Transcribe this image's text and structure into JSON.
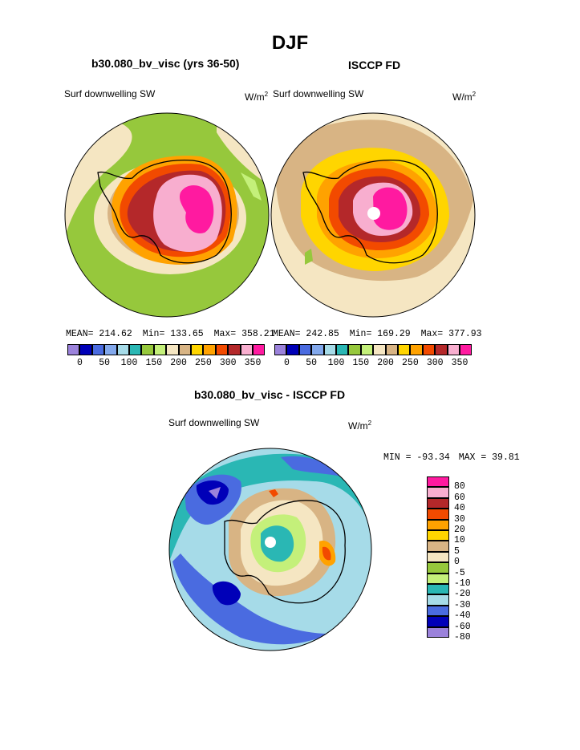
{
  "figure": {
    "title": "DJF",
    "panels": [
      {
        "title": "b30.080_bv_visc (yrs 36-50)",
        "var_label": "Surf downwelling SW",
        "units_base": "W/m",
        "units_exp": "2",
        "stats": {
          "mean_label": "MEAN=",
          "mean": "214.62",
          "min_label": "Min=",
          "min": "133.65",
          "max_label": "Max=",
          "max": "358.21"
        }
      },
      {
        "title": "ISCCP FD",
        "var_label": "Surf downwelling SW",
        "units_base": "W/m",
        "units_exp": "2",
        "stats": {
          "mean_label": "MEAN=",
          "mean": "242.85",
          "min_label": "Min=",
          "min": "169.29",
          "max_label": "Max=",
          "max": "377.93"
        }
      }
    ],
    "diff_panel": {
      "title": "b30.080_bv_visc - ISCCP FD",
      "var_label": "Surf downwelling SW",
      "units_base": "W/m",
      "units_exp": "2",
      "min_text": "MIN = -93.34",
      "max_text": "MAX =  39.81"
    }
  },
  "chart_data": [
    {
      "type": "heatmap",
      "projection": "south-polar-stereographic",
      "title": "b30.080_bv_visc (yrs 36-50)",
      "variable": "Surf downwelling SW",
      "units": "W/m2",
      "mean": 214.62,
      "min": 133.65,
      "max": 358.21,
      "colorbar_ticks": [
        "0",
        "50",
        "100",
        "150",
        "200",
        "250",
        "300",
        "350"
      ],
      "levels": [
        0,
        25,
        50,
        75,
        100,
        125,
        150,
        175,
        200,
        225,
        250,
        275,
        300,
        325,
        350
      ]
    },
    {
      "type": "heatmap",
      "projection": "south-polar-stereographic",
      "title": "ISCCP FD",
      "variable": "Surf downwelling SW",
      "units": "W/m2",
      "mean": 242.85,
      "min": 169.29,
      "max": 377.93,
      "colorbar_ticks": [
        "0",
        "50",
        "100",
        "150",
        "200",
        "250",
        "300",
        "350"
      ],
      "levels": [
        0,
        25,
        50,
        75,
        100,
        125,
        150,
        175,
        200,
        225,
        250,
        275,
        300,
        325,
        350
      ]
    },
    {
      "type": "heatmap",
      "projection": "south-polar-stereographic",
      "title": "b30.080_bv_visc - ISCCP FD",
      "variable": "Surf downwelling SW",
      "units": "W/m2",
      "min": -93.34,
      "max": 39.81,
      "colorbar_labels": [
        "80",
        "60",
        "40",
        "30",
        "20",
        "10",
        "5",
        "0",
        "-5",
        "-10",
        "-20",
        "-30",
        "-40",
        "-60",
        "-80"
      ]
    }
  ],
  "colors": {
    "abs_scale": [
      "#9b82db",
      "#0000b8",
      "#4a6be0",
      "#82a8ec",
      "#a6dbe8",
      "#2ab7b4",
      "#96c83c",
      "#c4f07a",
      "#f5e6c2",
      "#d8b484",
      "#ffd500",
      "#ffa200",
      "#f24a00",
      "#b4282a",
      "#f8aecf",
      "#ff1aa0"
    ],
    "diff_scale": [
      "#ff1aa0",
      "#f8aecf",
      "#b4282a",
      "#f24a00",
      "#ffa200",
      "#ffd500",
      "#d8b484",
      "#f5e6c2",
      "#96c83c",
      "#c4f07a",
      "#2ab7b4",
      "#a6dbe8",
      "#4a6be0",
      "#0000b8",
      "#9b82db"
    ]
  }
}
